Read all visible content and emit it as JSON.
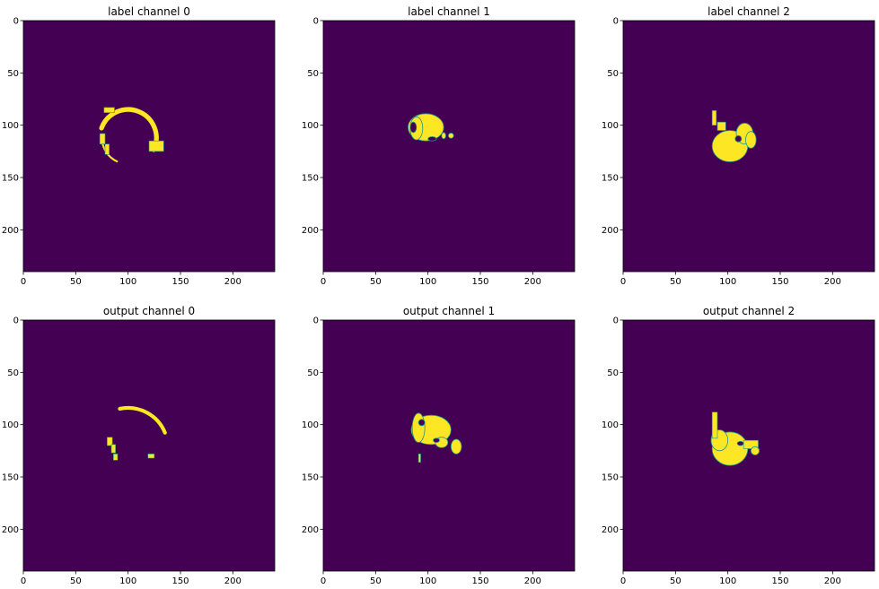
{
  "colors": {
    "background": "#440154",
    "foreground": "#fde725",
    "edge": "#21918c"
  },
  "chart_data": [
    {
      "type": "heatmap",
      "title": "label channel 0",
      "xlim": [
        0,
        240
      ],
      "ylim": [
        240,
        0
      ],
      "xticks": [
        0,
        50,
        100,
        150,
        200
      ],
      "yticks": [
        0,
        50,
        100,
        150,
        200
      ],
      "blobs": [
        {
          "shape": "arc",
          "cx": 100,
          "cy": 112,
          "r": 27,
          "start_deg": 200,
          "end_deg": 385,
          "width": 5
        },
        {
          "shape": "arc",
          "cx": 100,
          "cy": 112,
          "r": 25,
          "start_deg": 115,
          "end_deg": 165,
          "width": 2
        },
        {
          "shape": "rect",
          "x": 77,
          "y": 83,
          "w": 10,
          "h": 5
        },
        {
          "shape": "rect",
          "x": 120,
          "y": 115,
          "w": 14,
          "h": 10
        },
        {
          "shape": "rect",
          "x": 73,
          "y": 108,
          "w": 5,
          "h": 10
        },
        {
          "shape": "rect",
          "x": 78,
          "y": 118,
          "w": 4,
          "h": 10
        }
      ]
    },
    {
      "type": "heatmap",
      "title": "label channel 1",
      "xlim": [
        0,
        240
      ],
      "ylim": [
        240,
        0
      ],
      "xticks": [
        0,
        50,
        100,
        150,
        200
      ],
      "yticks": [
        0,
        50,
        100,
        150,
        200
      ],
      "blobs": [
        {
          "shape": "ellipse",
          "cx": 98,
          "cy": 102,
          "rx": 17,
          "ry": 13
        },
        {
          "shape": "ellipse",
          "cx": 89,
          "cy": 103,
          "rx": 6,
          "ry": 11
        },
        {
          "shape": "ellipse",
          "cx": 122,
          "cy": 110,
          "rx": 2.5,
          "ry": 2.5
        },
        {
          "shape": "ellipse",
          "cx": 115,
          "cy": 110,
          "rx": 2,
          "ry": 3
        }
      ],
      "holes": [
        {
          "shape": "ellipse",
          "cx": 86,
          "cy": 102,
          "rx": 3,
          "ry": 5
        },
        {
          "shape": "ellipse",
          "cx": 104,
          "cy": 113,
          "rx": 4,
          "ry": 2
        }
      ]
    },
    {
      "type": "heatmap",
      "title": "label channel 2",
      "xlim": [
        0,
        240
      ],
      "ylim": [
        240,
        0
      ],
      "xticks": [
        0,
        50,
        100,
        150,
        200
      ],
      "yticks": [
        0,
        50,
        100,
        150,
        200
      ],
      "blobs": [
        {
          "shape": "ellipse",
          "cx": 102,
          "cy": 120,
          "rx": 17,
          "ry": 15
        },
        {
          "shape": "ellipse",
          "cx": 116,
          "cy": 108,
          "rx": 8,
          "ry": 10
        },
        {
          "shape": "rect",
          "x": 85,
          "y": 86,
          "w": 4,
          "h": 14
        },
        {
          "shape": "rect",
          "x": 90,
          "y": 97,
          "w": 8,
          "h": 8
        },
        {
          "shape": "ellipse",
          "cx": 122,
          "cy": 114,
          "rx": 5,
          "ry": 8
        }
      ],
      "holes": [
        {
          "shape": "ellipse",
          "cx": 110,
          "cy": 113,
          "rx": 3,
          "ry": 3
        }
      ]
    },
    {
      "type": "heatmap",
      "title": "output channel 0",
      "xlim": [
        0,
        240
      ],
      "ylim": [
        240,
        0
      ],
      "xticks": [
        0,
        50,
        100,
        150,
        200
      ],
      "yticks": [
        0,
        50,
        100,
        150,
        200
      ],
      "blobs": [
        {
          "shape": "arc",
          "cx": 100,
          "cy": 122,
          "r": 38,
          "start_deg": 258,
          "end_deg": 338,
          "width": 4
        },
        {
          "shape": "rect",
          "x": 80,
          "y": 112,
          "w": 5,
          "h": 8
        },
        {
          "shape": "rect",
          "x": 84,
          "y": 119,
          "w": 4,
          "h": 8
        },
        {
          "shape": "rect",
          "x": 86,
          "y": 128,
          "w": 4,
          "h": 6
        },
        {
          "shape": "rect",
          "x": 119,
          "y": 128,
          "w": 6,
          "h": 4
        }
      ]
    },
    {
      "type": "heatmap",
      "title": "output channel 1",
      "xlim": [
        0,
        240
      ],
      "ylim": [
        240,
        0
      ],
      "xticks": [
        0,
        50,
        100,
        150,
        200
      ],
      "yticks": [
        0,
        50,
        100,
        150,
        200
      ],
      "blobs": [
        {
          "shape": "ellipse",
          "cx": 103,
          "cy": 105,
          "rx": 19,
          "ry": 14
        },
        {
          "shape": "ellipse",
          "cx": 91,
          "cy": 103,
          "rx": 6,
          "ry": 14
        },
        {
          "shape": "ellipse",
          "cx": 127,
          "cy": 121,
          "rx": 5,
          "ry": 7
        },
        {
          "shape": "ellipse",
          "cx": 113,
          "cy": 117,
          "rx": 6,
          "ry": 5
        },
        {
          "shape": "rect",
          "x": 91,
          "y": 128,
          "w": 2,
          "h": 8
        }
      ],
      "holes": [
        {
          "shape": "ellipse",
          "cx": 94,
          "cy": 98,
          "rx": 3,
          "ry": 3
        },
        {
          "shape": "ellipse",
          "cx": 108,
          "cy": 115,
          "rx": 3,
          "ry": 2
        }
      ]
    },
    {
      "type": "heatmap",
      "title": "output channel 2",
      "xlim": [
        0,
        240
      ],
      "ylim": [
        240,
        0
      ],
      "xticks": [
        0,
        50,
        100,
        150,
        200
      ],
      "yticks": [
        0,
        50,
        100,
        150,
        200
      ],
      "blobs": [
        {
          "shape": "ellipse",
          "cx": 102,
          "cy": 123,
          "rx": 17,
          "ry": 16
        },
        {
          "shape": "ellipse",
          "cx": 92,
          "cy": 115,
          "rx": 8,
          "ry": 10
        },
        {
          "shape": "rect",
          "x": 85,
          "y": 88,
          "w": 5,
          "h": 25
        },
        {
          "shape": "rect",
          "x": 115,
          "y": 115,
          "w": 14,
          "h": 8
        },
        {
          "shape": "ellipse",
          "cx": 126,
          "cy": 125,
          "rx": 4,
          "ry": 4
        }
      ],
      "holes": [
        {
          "shape": "ellipse",
          "cx": 112,
          "cy": 118,
          "rx": 3,
          "ry": 2
        }
      ]
    }
  ]
}
